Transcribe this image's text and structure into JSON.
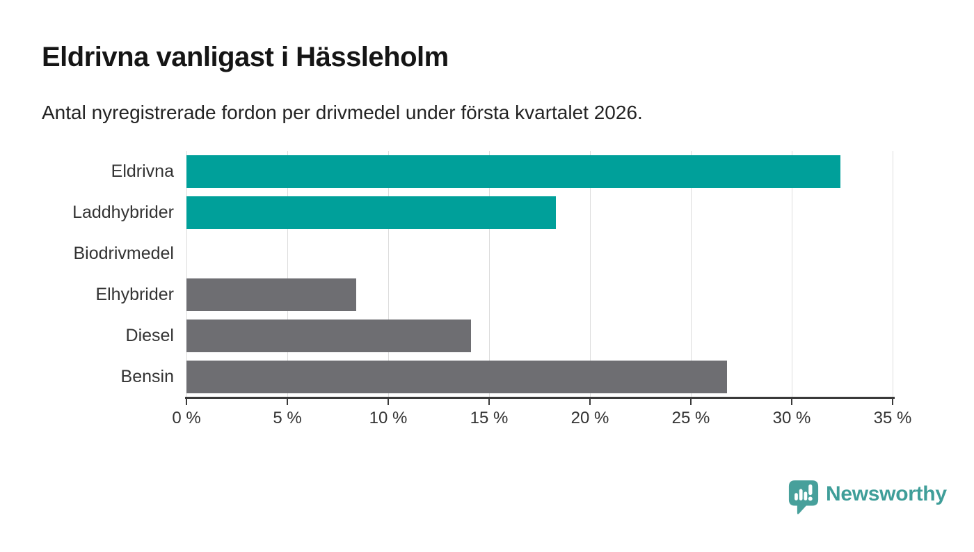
{
  "header": {
    "title": "Eldrivna vanligast i Hässleholm",
    "subtitle": "Antal nyregistrerade fordon per drivmedel under första kvartalet 2026."
  },
  "chart_data": {
    "type": "bar",
    "orientation": "horizontal",
    "title": "Eldrivna vanligast i Hässleholm",
    "subtitle": "Antal nyregistrerade fordon per drivmedel under första kvartalet 2026.",
    "categories": [
      "Eldrivna",
      "Laddhybrider",
      "Biodrivmedel",
      "Elhybrider",
      "Diesel",
      "Bensin"
    ],
    "values": [
      32.4,
      18.3,
      0,
      8.4,
      14.1,
      26.8
    ],
    "unit": "%",
    "bar_colors": [
      "#00a09a",
      "#00a09a",
      "#6e6e72",
      "#6e6e72",
      "#6e6e72",
      "#6e6e72"
    ],
    "highlight_color": "#00a09a",
    "default_color": "#6e6e72",
    "xlim": [
      0,
      35
    ],
    "x_tick_values": [
      0,
      5,
      10,
      15,
      20,
      25,
      30,
      35
    ],
    "x_tick_labels": [
      "0 %",
      "5 %",
      "10 %",
      "15 %",
      "20 %",
      "25 %",
      "30 %",
      "35 %"
    ],
    "xlabel": "",
    "ylabel": "",
    "grid": "vertical",
    "legend": "none"
  },
  "branding": {
    "logo_text": "Newsworthy",
    "logo_icon": "newsworthy-speech-bubble-barchart-icon",
    "logo_color": "#3f9e99"
  },
  "colors": {
    "background": "#ffffff",
    "teal_bar": "#00a09a",
    "gray_bar": "#6e6e72",
    "axis_line": "#3a3a3a",
    "gridline": "#dcdcdc",
    "tick_text": "#333333",
    "title_text": "#151515"
  }
}
